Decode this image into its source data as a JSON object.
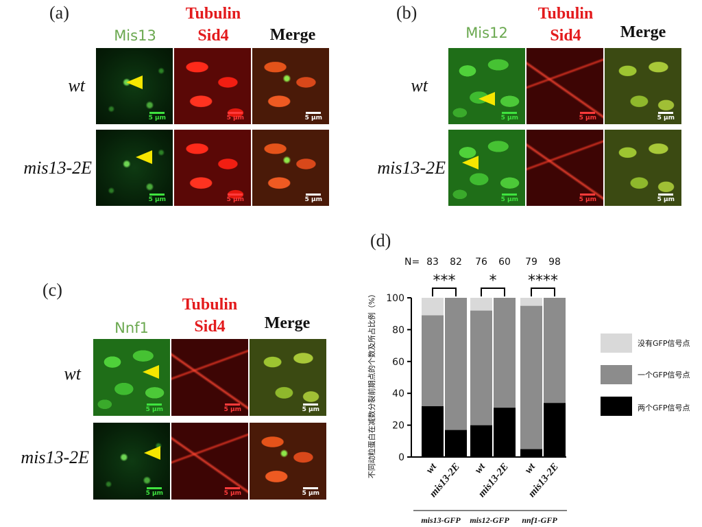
{
  "panel_a": {
    "label": "(a)",
    "headers": {
      "green": "Mis13",
      "red_line1": "Tubulin",
      "red_line2": "Sid4",
      "merge": "Merge"
    },
    "rows": [
      {
        "label": "wt",
        "scale": "5 μm"
      },
      {
        "label": "mis13-2E",
        "scale": "5 μm"
      }
    ]
  },
  "panel_b": {
    "label": "(b)",
    "headers": {
      "green": "Mis12",
      "red_line1": "Tubulin",
      "red_line2": "Sid4",
      "merge": "Merge"
    },
    "rows": [
      {
        "label": "wt",
        "scale": "5 μm"
      },
      {
        "label": "mis13-2E",
        "scale": "5 μm"
      }
    ]
  },
  "panel_c": {
    "label": "(c)",
    "headers": {
      "green": "Nnf1",
      "red_line1": "Tubulin",
      "red_line2": "Sid4",
      "merge": "Merge"
    },
    "rows": [
      {
        "label": "wt",
        "scale": "5 μm"
      },
      {
        "label": "mis13-2E",
        "scale": "5 μm"
      }
    ]
  },
  "panel_d": {
    "label": "(d)",
    "legend": [
      {
        "label": "没有GFP信号点",
        "color": "#d9d9d9"
      },
      {
        "label": "一个GFP信号点",
        "color": "#8c8c8c"
      },
      {
        "label": "两个GFP信号点",
        "color": "#000000"
      }
    ]
  },
  "chart_data": {
    "type": "bar",
    "stacked": true,
    "ylabel": "不同动粒蛋白在减数分裂前期点的个数及所占比例（%）",
    "ylim": [
      0,
      100
    ],
    "yticks": [
      0,
      20,
      40,
      60,
      80,
      100
    ],
    "n_prefix": "N=",
    "categories": [
      "wt",
      "mis13-2E",
      "wt",
      "mis13-2E",
      "wt",
      "mis13-2E"
    ],
    "groups": [
      "mis13-GFP",
      "mis12-GFP",
      "nnf1-GFP"
    ],
    "n": [
      83,
      82,
      76,
      60,
      79,
      98
    ],
    "significance": [
      "***",
      "*",
      "****"
    ],
    "series": [
      {
        "name": "两个GFP信号点",
        "color": "#000000",
        "values": [
          32,
          17,
          20,
          31,
          5,
          34
        ]
      },
      {
        "name": "一个GFP信号点",
        "color": "#8c8c8c",
        "values": [
          57,
          83,
          72,
          69,
          90,
          66
        ]
      },
      {
        "name": "没有GFP信号点",
        "color": "#d9d9d9",
        "values": [
          11,
          0,
          8,
          0,
          5,
          0
        ]
      }
    ]
  }
}
